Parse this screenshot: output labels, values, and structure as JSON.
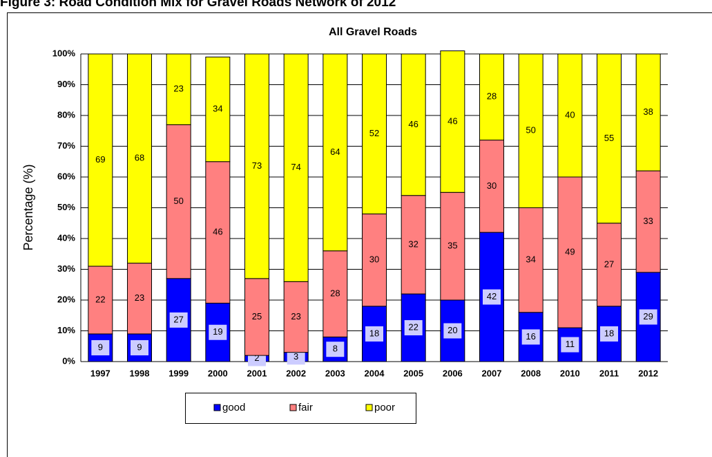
{
  "figure_title": "Figure 3: Road Condition Mix for Gravel Roads Network of 2012",
  "chart_data": {
    "type": "stacked_bar",
    "title": "All Gravel Roads",
    "y_label": "Percentage (%)",
    "categories": [
      "1997",
      "1998",
      "1999",
      "2000",
      "2001",
      "2002",
      "2003",
      "2004",
      "2005",
      "2006",
      "2007",
      "2008",
      "2010",
      "2011",
      "2012"
    ],
    "series": [
      {
        "name": "good",
        "color": "#0000ff",
        "values": [
          9,
          9,
          27,
          19,
          2,
          3,
          8,
          18,
          22,
          20,
          42,
          16,
          11,
          18,
          29
        ]
      },
      {
        "name": "fair",
        "color": "#ff8080",
        "values": [
          22,
          23,
          50,
          46,
          25,
          23,
          28,
          30,
          32,
          35,
          30,
          34,
          49,
          27,
          33
        ]
      },
      {
        "name": "poor",
        "color": "#ffff00",
        "values": [
          69,
          68,
          23,
          34,
          73,
          74,
          64,
          52,
          46,
          46,
          28,
          50,
          40,
          55,
          38
        ]
      }
    ],
    "ylim": [
      0,
      100
    ],
    "yticks": [
      {
        "value": 0,
        "label": "0%"
      },
      {
        "value": 10,
        "label": "10%"
      },
      {
        "value": 20,
        "label": "20%"
      },
      {
        "value": 30,
        "label": "30%"
      },
      {
        "value": 40,
        "label": "40%"
      },
      {
        "value": 50,
        "label": "50%"
      },
      {
        "value": 60,
        "label": "60%"
      },
      {
        "value": 70,
        "label": "70%"
      },
      {
        "value": 80,
        "label": "80%"
      },
      {
        "value": 90,
        "label": "90%"
      },
      {
        "value": 100,
        "label": "100%"
      }
    ],
    "grid": true,
    "legend": "bottom"
  }
}
